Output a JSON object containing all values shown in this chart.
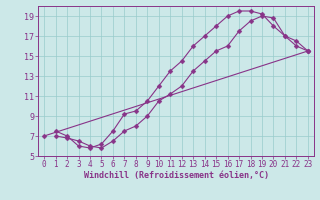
{
  "xlabel": "Windchill (Refroidissement éolien,°C)",
  "bg_color": "#cce8e8",
  "line_color": "#883388",
  "xlim": [
    -0.5,
    23.5
  ],
  "ylim": [
    5,
    20
  ],
  "xticks": [
    0,
    1,
    2,
    3,
    4,
    5,
    6,
    7,
    8,
    9,
    10,
    11,
    12,
    13,
    14,
    15,
    16,
    17,
    18,
    19,
    20,
    21,
    22,
    23
  ],
  "yticks": [
    5,
    7,
    9,
    11,
    13,
    15,
    17,
    19
  ],
  "line1_x": [
    1,
    2,
    3,
    4,
    5,
    6,
    7,
    8,
    9,
    10,
    11,
    12,
    13,
    14,
    15,
    16,
    17,
    18,
    19,
    20,
    21,
    22,
    23
  ],
  "line1_y": [
    7.5,
    7.0,
    6.0,
    5.8,
    6.2,
    7.5,
    9.2,
    9.5,
    10.5,
    12.0,
    13.5,
    14.5,
    16.0,
    17.0,
    18.0,
    19.0,
    19.5,
    19.5,
    19.2,
    18.0,
    17.0,
    16.5,
    15.5
  ],
  "line2_x": [
    1,
    2,
    3,
    4,
    5,
    6,
    7,
    8,
    9,
    10,
    11,
    12,
    13,
    14,
    15,
    16,
    17,
    18,
    19,
    20,
    21,
    22,
    23
  ],
  "line2_y": [
    7.0,
    6.8,
    6.5,
    6.0,
    5.8,
    6.5,
    7.5,
    8.0,
    9.0,
    10.5,
    11.2,
    12.0,
    13.5,
    14.5,
    15.5,
    16.0,
    17.5,
    18.5,
    19.0,
    18.8,
    17.0,
    16.0,
    15.5
  ],
  "line3_x": [
    0,
    23
  ],
  "line3_y": [
    7.0,
    15.5
  ],
  "grid_color": "#99cccc",
  "marker": "D",
  "markersize": 2.5,
  "tick_fontsize": 5.5,
  "xlabel_fontsize": 6.0
}
